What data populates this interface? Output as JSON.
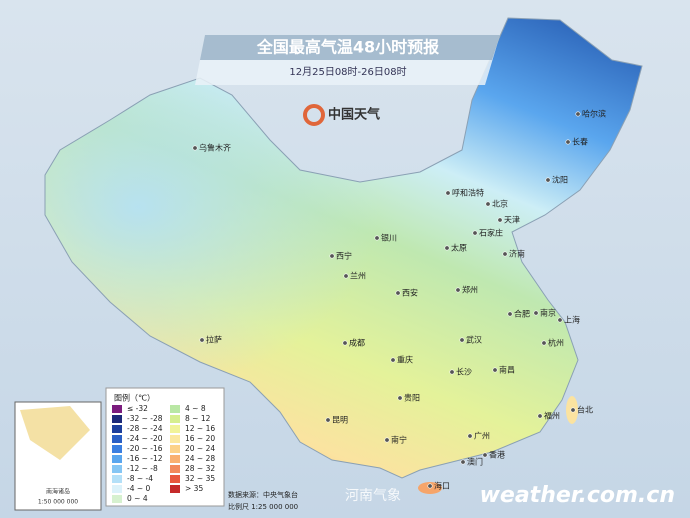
{
  "header": {
    "title": "全国最高气温48小时预报",
    "subtitle": "12月25日08时-26日08时",
    "logo": "中国天气"
  },
  "legend": {
    "title": "图例（℃）",
    "items": [
      {
        "label": "≤ -32",
        "color": "#7b1c7e"
      },
      {
        "label": "-32 ~ -28",
        "color": "#1c2a7a"
      },
      {
        "label": "-28 ~ -24",
        "color": "#1d3f9c"
      },
      {
        "label": "-24 ~ -20",
        "color": "#2a5fc4"
      },
      {
        "label": "-20 ~ -16",
        "color": "#3b7fe0"
      },
      {
        "label": "-16 ~ -12",
        "color": "#5aa6ee"
      },
      {
        "label": "-12 ~ -8",
        "color": "#86c6f4"
      },
      {
        "label": "-8 ~ -4",
        "color": "#b4e0f8"
      },
      {
        "label": "-4 ~ 0",
        "color": "#dcf2fa"
      },
      {
        "label": "0 ~ 4",
        "color": "#d6f1cf"
      },
      {
        "label": "4 ~ 8",
        "color": "#b9e7a4"
      },
      {
        "label": "8 ~ 12",
        "color": "#d6ee8f"
      },
      {
        "label": "12 ~ 16",
        "color": "#f1f39a"
      },
      {
        "label": "16 ~ 20",
        "color": "#fbe8a0"
      },
      {
        "label": "20 ~ 24",
        "color": "#fcd28a"
      },
      {
        "label": "24 ~ 28",
        "color": "#f9b071"
      },
      {
        "label": "28 ~ 32",
        "color": "#f28a5c"
      },
      {
        "label": "32 ~ 35",
        "color": "#e8583e"
      },
      {
        "label": "> 35",
        "color": "#c52a2a"
      }
    ]
  },
  "cities": [
    "乌鲁木齐",
    "哈尔滨",
    "长春",
    "沈阳",
    "呼和浩特",
    "北京",
    "天津",
    "石家庄",
    "太原",
    "济南",
    "银川",
    "西宁",
    "兰州",
    "郑州",
    "西安",
    "合肥",
    "南京",
    "上海",
    "拉萨",
    "成都",
    "武汉",
    "杭州",
    "重庆",
    "长沙",
    "南昌",
    "贵阳",
    "福州",
    "台北",
    "昆明",
    "南宁",
    "广州",
    "澳门",
    "香港",
    "海口"
  ],
  "footer": {
    "source": "数据来源：中央气象台",
    "scale": "比例尺 1:25 000 000",
    "inset_scale": "1:50 000 000",
    "inset_label": "南海诸岛",
    "watermark": "河南气象",
    "site": "weather.com.cn"
  }
}
